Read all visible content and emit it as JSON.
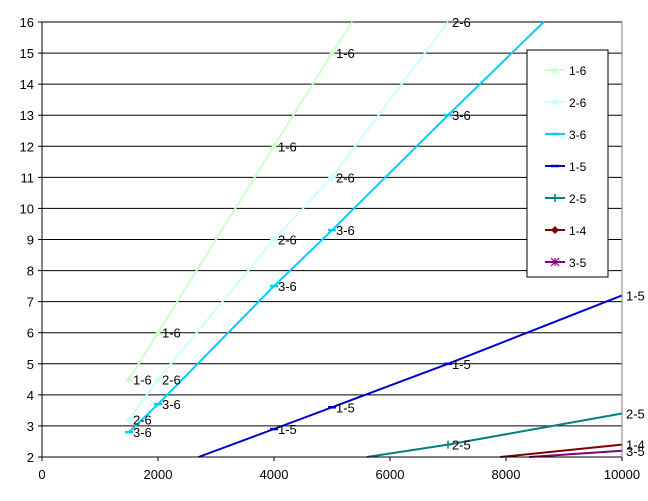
{
  "chart_data": {
    "type": "line",
    "xlim": [
      0,
      10000
    ],
    "ylim": [
      2,
      16
    ],
    "x_ticks": [
      "0",
      "2000",
      "4000",
      "6000",
      "8000",
      "10000"
    ],
    "y_ticks": [
      "2",
      "3",
      "4",
      "5",
      "6",
      "7",
      "8",
      "9",
      "10",
      "11",
      "12",
      "13",
      "14",
      "15",
      "16"
    ],
    "grid": "horizontal",
    "legend_position": "right",
    "series": [
      {
        "name": "1-6",
        "color": "#ccffcc",
        "marker": "triangle",
        "points": [
          [
            1500,
            4.5
          ],
          [
            2000,
            6.0
          ],
          [
            4000,
            12.0
          ],
          [
            5000,
            15.0
          ],
          [
            5350,
            16.0
          ]
        ],
        "labels": [
          {
            "x": 1500,
            "y": 4.5,
            "text": "1-6"
          },
          {
            "x": 2000,
            "y": 6.0,
            "text": "1-6"
          },
          {
            "x": 4000,
            "y": 12.0,
            "text": "1-6"
          },
          {
            "x": 5000,
            "y": 15.0,
            "text": "1-6"
          }
        ]
      },
      {
        "name": "2-6",
        "color": "#ccffff",
        "marker": "diamond",
        "points": [
          [
            1500,
            3.2
          ],
          [
            2000,
            4.5
          ],
          [
            4000,
            9.0
          ],
          [
            5000,
            11.0
          ],
          [
            7000,
            16.0
          ]
        ],
        "labels": [
          {
            "x": 1500,
            "y": 3.2,
            "text": "2-6"
          },
          {
            "x": 2000,
            "y": 4.5,
            "text": "2-6"
          },
          {
            "x": 4000,
            "y": 9.0,
            "text": "2-6"
          },
          {
            "x": 5000,
            "y": 11.0,
            "text": "2-6"
          },
          {
            "x": 7000,
            "y": 16.0,
            "text": "2-6"
          }
        ]
      },
      {
        "name": "3-6",
        "color": "#00ccff",
        "marker": "dash",
        "points": [
          [
            1500,
            2.8
          ],
          [
            2000,
            3.7
          ],
          [
            4000,
            7.5
          ],
          [
            5000,
            9.3
          ],
          [
            7000,
            13.0
          ],
          [
            8650,
            16.0
          ]
        ],
        "labels": [
          {
            "x": 1500,
            "y": 2.8,
            "text": "3-6"
          },
          {
            "x": 2000,
            "y": 3.7,
            "text": "3-6"
          },
          {
            "x": 4000,
            "y": 7.5,
            "text": "3-6"
          },
          {
            "x": 5000,
            "y": 9.3,
            "text": "3-6"
          },
          {
            "x": 7000,
            "y": 13.0,
            "text": "3-6"
          }
        ]
      },
      {
        "name": "1-5",
        "color": "#0000cc",
        "marker": "dash",
        "points": [
          [
            2700,
            2.0
          ],
          [
            4000,
            2.9
          ],
          [
            5000,
            3.6
          ],
          [
            7000,
            5.0
          ],
          [
            10000,
            7.2
          ]
        ],
        "labels": [
          {
            "x": 4000,
            "y": 2.9,
            "text": "1-5"
          },
          {
            "x": 5000,
            "y": 3.6,
            "text": "1-5"
          },
          {
            "x": 7000,
            "y": 5.0,
            "text": "1-5"
          },
          {
            "x": 10000,
            "y": 7.2,
            "text": "1-5"
          }
        ]
      },
      {
        "name": "2-5",
        "color": "#008080",
        "marker": "plus",
        "points": [
          [
            5600,
            2.0
          ],
          [
            7000,
            2.4
          ],
          [
            10000,
            3.4
          ]
        ],
        "labels": [
          {
            "x": 7000,
            "y": 2.4,
            "text": "2-5"
          },
          {
            "x": 10000,
            "y": 3.4,
            "text": "2-5"
          }
        ]
      },
      {
        "name": "1-4",
        "color": "#800000",
        "marker": "diamond",
        "points": [
          [
            7900,
            2.0
          ],
          [
            10000,
            2.4
          ]
        ],
        "labels": [
          {
            "x": 10000,
            "y": 2.4,
            "text": "1-4"
          }
        ]
      },
      {
        "name": "3-5",
        "color": "#800080",
        "marker": "star",
        "points": [
          [
            8400,
            2.0
          ],
          [
            10000,
            2.2
          ]
        ],
        "labels": [
          {
            "x": 10000,
            "y": 2.2,
            "text": "3-5"
          }
        ]
      }
    ]
  }
}
